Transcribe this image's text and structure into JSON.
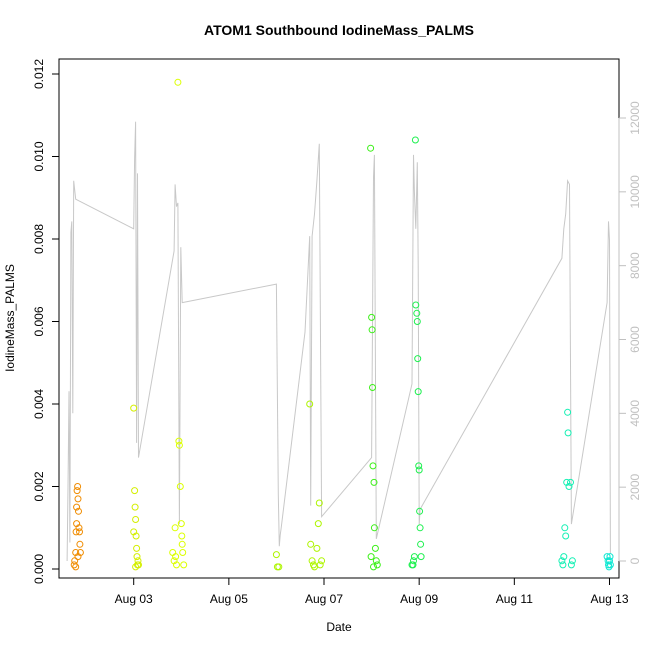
{
  "chart_data": {
    "type": "scatter",
    "title": "ATOM1 Southbound IodineMass_PALMS",
    "xlabel": "Date",
    "ylabel": "IodineMass_PALMS",
    "x_unit": "days since Aug 01 00:00",
    "xlim": [
      1.43,
      13.2
    ],
    "ylim": [
      0.0,
      0.012
    ],
    "y2lim": [
      0,
      12000
    ],
    "x_ticks": [
      {
        "value": 3,
        "label": "Aug 03"
      },
      {
        "value": 5,
        "label": "Aug 05"
      },
      {
        "value": 7,
        "label": "Aug 07"
      },
      {
        "value": 9,
        "label": "Aug 09"
      },
      {
        "value": 11,
        "label": "Aug 11"
      },
      {
        "value": 13,
        "label": "Aug 13"
      }
    ],
    "y_ticks": [
      "0.000",
      "0.002",
      "0.004",
      "0.006",
      "0.008",
      "0.010",
      "0.012"
    ],
    "y2_ticks": [
      "0",
      "2000",
      "4000",
      "6000",
      "8000",
      "10000",
      "12000"
    ],
    "grid": false,
    "legend": "none",
    "secondary_line_color": "#c8c8c8",
    "series": [
      {
        "color": "#f08c00",
        "points": [
          [
            1.75,
            0.0001
          ],
          [
            1.76,
            0.0002
          ],
          [
            1.78,
            0.0004
          ],
          [
            1.79,
            0.0009
          ],
          [
            1.8,
            0.0011
          ],
          [
            1.8,
            0.0015
          ],
          [
            1.81,
            0.0019
          ],
          [
            1.82,
            0.002
          ],
          [
            1.83,
            0.0017
          ],
          [
            1.84,
            0.0014
          ],
          [
            1.85,
            0.001
          ],
          [
            1.86,
            0.0009
          ],
          [
            1.87,
            0.0006
          ],
          [
            1.88,
            0.0004
          ],
          [
            1.78,
            5e-05
          ],
          [
            1.83,
            0.0003
          ]
        ]
      },
      {
        "color": "#d4ef00",
        "points": [
          [
            3.0,
            0.0039
          ],
          [
            3.02,
            0.0019
          ],
          [
            3.03,
            0.0015
          ],
          [
            3.04,
            0.0012
          ],
          [
            3.05,
            0.0008
          ],
          [
            3.06,
            0.0005
          ],
          [
            3.07,
            0.0003
          ],
          [
            3.08,
            0.0001
          ],
          [
            3.09,
            0.0002
          ],
          [
            3.1,
            0.0001
          ],
          [
            3.0,
            0.0009
          ],
          [
            3.04,
            5e-05
          ]
        ]
      },
      {
        "color": "#dcff00",
        "points": [
          [
            3.82,
            0.0004
          ],
          [
            3.85,
            0.0002
          ],
          [
            3.88,
            0.0003
          ],
          [
            3.9,
            0.0001
          ],
          [
            3.93,
            0.0118
          ],
          [
            3.95,
            0.0031
          ],
          [
            3.96,
            0.003
          ],
          [
            3.98,
            0.002
          ],
          [
            4.0,
            0.0011
          ],
          [
            4.01,
            0.0008
          ],
          [
            4.02,
            0.0006
          ],
          [
            4.03,
            0.0004
          ],
          [
            4.05,
            0.0001
          ],
          [
            3.87,
            0.001
          ]
        ]
      },
      {
        "color": "#aef500",
        "points": [
          [
            6.0,
            0.00035
          ],
          [
            6.02,
            5e-05
          ],
          [
            6.05,
            5e-05
          ],
          [
            6.7,
            0.004
          ],
          [
            6.72,
            0.0006
          ],
          [
            6.75,
            0.0002
          ],
          [
            6.78,
            0.0001
          ],
          [
            6.8,
            5e-05
          ],
          [
            6.85,
            0.0005
          ],
          [
            6.88,
            0.0011
          ],
          [
            6.9,
            0.0016
          ],
          [
            6.92,
            0.0001
          ],
          [
            6.95,
            0.0002
          ]
        ]
      },
      {
        "color": "#3cf018",
        "points": [
          [
            7.98,
            0.0102
          ],
          [
            8.0,
            0.0061
          ],
          [
            8.01,
            0.0058
          ],
          [
            8.02,
            0.0044
          ],
          [
            8.03,
            0.0025
          ],
          [
            8.05,
            0.0021
          ],
          [
            8.06,
            0.001
          ],
          [
            8.08,
            0.0005
          ],
          [
            8.1,
            0.0002
          ],
          [
            8.12,
            0.0001
          ],
          [
            7.99,
            0.0003
          ],
          [
            8.04,
            5e-05
          ]
        ]
      },
      {
        "color": "#1ef050",
        "points": [
          [
            8.85,
            0.0001
          ],
          [
            8.88,
            0.0002
          ],
          [
            8.9,
            0.0003
          ],
          [
            8.92,
            0.0104
          ],
          [
            8.93,
            0.0064
          ],
          [
            8.95,
            0.0062
          ],
          [
            8.96,
            0.006
          ],
          [
            8.97,
            0.0051
          ],
          [
            8.98,
            0.0043
          ],
          [
            8.99,
            0.0025
          ],
          [
            9.0,
            0.0024
          ],
          [
            9.01,
            0.0014
          ],
          [
            9.02,
            0.001
          ],
          [
            9.03,
            0.0006
          ],
          [
            9.04,
            0.0003
          ],
          [
            8.87,
            0.0001
          ]
        ]
      },
      {
        "color": "#14f0b4",
        "points": [
          [
            12.0,
            0.0002
          ],
          [
            12.02,
            0.0001
          ],
          [
            12.04,
            0.0003
          ],
          [
            12.06,
            0.001
          ],
          [
            12.08,
            0.0008
          ],
          [
            12.1,
            0.0021
          ],
          [
            12.12,
            0.0038
          ],
          [
            12.13,
            0.0033
          ],
          [
            12.15,
            0.002
          ],
          [
            12.18,
            0.0021
          ],
          [
            12.2,
            0.0001
          ],
          [
            12.22,
            0.0002
          ]
        ]
      },
      {
        "color": "#0fe8d2",
        "points": [
          [
            12.95,
            0.0003
          ],
          [
            12.97,
            0.0002
          ],
          [
            12.98,
            0.0001
          ],
          [
            12.99,
            5e-05
          ],
          [
            13.0,
            0.0002
          ],
          [
            13.01,
            0.0003
          ],
          [
            13.02,
            0.0001
          ]
        ]
      }
    ],
    "secondary_line": [
      [
        1.6,
        0
      ],
      [
        1.62,
        2000
      ],
      [
        1.64,
        4600
      ],
      [
        1.66,
        500
      ],
      [
        1.68,
        8900
      ],
      [
        1.7,
        9200
      ],
      [
        1.72,
        4000
      ],
      [
        1.74,
        10300
      ],
      [
        1.78,
        9800
      ],
      [
        3.0,
        9000
      ],
      [
        3.02,
        10900
      ],
      [
        3.04,
        11900
      ],
      [
        3.06,
        3200
      ],
      [
        3.08,
        10500
      ],
      [
        3.1,
        2800
      ],
      [
        3.85,
        8400
      ],
      [
        3.87,
        10200
      ],
      [
        3.9,
        9600
      ],
      [
        3.93,
        9700
      ],
      [
        3.96,
        1000
      ],
      [
        3.99,
        8500
      ],
      [
        4.02,
        7000
      ],
      [
        6.0,
        7500
      ],
      [
        6.04,
        1800
      ],
      [
        6.06,
        400
      ],
      [
        6.08,
        700
      ],
      [
        6.1,
        900
      ],
      [
        6.6,
        6200
      ],
      [
        6.7,
        8800
      ],
      [
        6.72,
        1500
      ],
      [
        6.75,
        8800
      ],
      [
        6.8,
        9400
      ],
      [
        6.85,
        10300
      ],
      [
        6.9,
        11300
      ],
      [
        6.95,
        1200
      ],
      [
        8.0,
        2800
      ],
      [
        8.04,
        10400
      ],
      [
        8.06,
        11000
      ],
      [
        8.08,
        5500
      ],
      [
        8.1,
        600
      ],
      [
        8.85,
        4800
      ],
      [
        8.88,
        11000
      ],
      [
        8.9,
        10000
      ],
      [
        8.93,
        9000
      ],
      [
        8.96,
        10800
      ],
      [
        8.98,
        8000
      ],
      [
        9.0,
        1000
      ],
      [
        9.02,
        1400
      ],
      [
        12.0,
        8200
      ],
      [
        12.04,
        9000
      ],
      [
        12.08,
        9400
      ],
      [
        12.12,
        10300
      ],
      [
        12.16,
        10200
      ],
      [
        12.2,
        1000
      ],
      [
        12.95,
        7000
      ],
      [
        12.98,
        9200
      ],
      [
        13.0,
        8700
      ],
      [
        13.02,
        200
      ]
    ]
  }
}
